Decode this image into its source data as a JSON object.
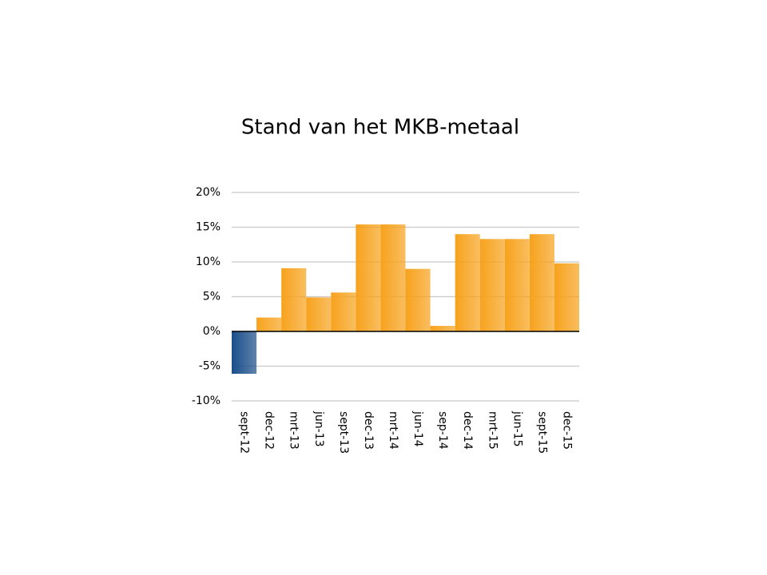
{
  "chart_data": {
    "type": "bar",
    "title": "Stand van het MKB-metaal",
    "categories": [
      "sept-12",
      "dec-12",
      "mrt-13",
      "jun-13",
      "sept-13",
      "dec-13",
      "mrt-14",
      "jun-14",
      "sep-14",
      "dec-14",
      "mrt-15",
      "jun-15",
      "sept-15",
      "dec-15"
    ],
    "values": [
      -6.1,
      2.0,
      9.1,
      4.9,
      5.6,
      15.4,
      15.4,
      9.0,
      0.8,
      14.0,
      13.3,
      13.3,
      14.0,
      9.8
    ],
    "color": "#f7a21c",
    "negative_color": "#1a4e8a",
    "ylim": [
      -10,
      20
    ],
    "yticks": [
      {
        "value": -10,
        "label": "-10%"
      },
      {
        "value": -5,
        "label": "-5%"
      },
      {
        "value": 0,
        "label": "0%"
      },
      {
        "value": 5,
        "label": "5%"
      },
      {
        "value": 10,
        "label": "10%"
      },
      {
        "value": 15,
        "label": "15%"
      },
      {
        "value": 20,
        "label": "20%"
      }
    ],
    "grid": true
  }
}
